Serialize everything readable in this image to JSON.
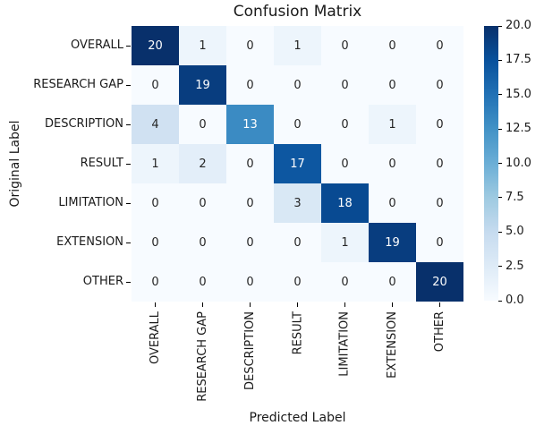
{
  "chart_data": {
    "type": "heatmap",
    "title": "Confusion Matrix",
    "xlabel": "Predicted Label",
    "ylabel": "Original Label",
    "x_categories": [
      "OVERALL",
      "RESEARCH GAP",
      "DESCRIPTION",
      "RESULT",
      "LIMITATION",
      "EXTENSION",
      "OTHER"
    ],
    "y_categories": [
      "OVERALL",
      "RESEARCH GAP",
      "DESCRIPTION",
      "RESULT",
      "LIMITATION",
      "EXTENSION",
      "OTHER"
    ],
    "matrix": [
      [
        20,
        1,
        0,
        1,
        0,
        0,
        0
      ],
      [
        0,
        19,
        0,
        0,
        0,
        0,
        0
      ],
      [
        4,
        0,
        13,
        0,
        0,
        1,
        0
      ],
      [
        1,
        2,
        0,
        17,
        0,
        0,
        0
      ],
      [
        0,
        0,
        0,
        3,
        18,
        0,
        0
      ],
      [
        0,
        0,
        0,
        0,
        1,
        19,
        0
      ],
      [
        0,
        0,
        0,
        0,
        0,
        0,
        20
      ]
    ],
    "vmin": 0,
    "vmax": 20,
    "grid": false,
    "annotations_shown": true,
    "colorbar": {
      "position": "right",
      "tick_labels": [
        "20.0",
        "17.5",
        "15.0",
        "12.5",
        "10.0",
        "7.5",
        "5.0",
        "2.5",
        "0.0"
      ]
    },
    "colormap": {
      "name": "Blues",
      "stops": [
        "#f7fbff",
        "#deebf7",
        "#c6dbef",
        "#9ecae1",
        "#6baed6",
        "#4292c6",
        "#2171b5",
        "#08519c",
        "#08306b"
      ]
    },
    "text_colors": {
      "on_light": "#262626",
      "on_dark": "#ffffff"
    }
  }
}
